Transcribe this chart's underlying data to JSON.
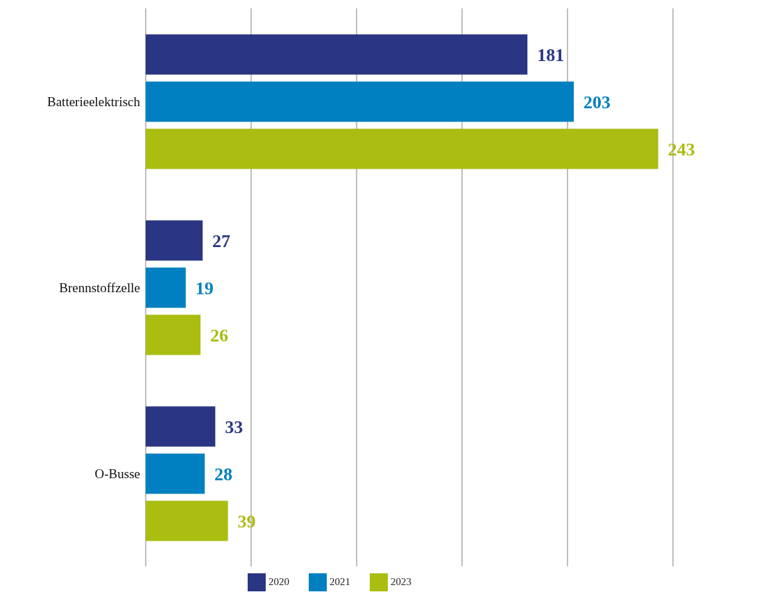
{
  "chart_data": {
    "type": "bar",
    "orientation": "horizontal",
    "categories": [
      "Batterieelektrisch",
      "Brennstoffzelle",
      "O-Busse"
    ],
    "series": [
      {
        "name": "2020",
        "color": "#2a3583",
        "values": [
          181,
          27,
          33
        ]
      },
      {
        "name": "2021",
        "color": "#0080c0",
        "values": [
          203,
          19,
          28
        ]
      },
      {
        "name": "2023",
        "color": "#aabd10",
        "values": [
          243,
          26,
          39
        ]
      }
    ],
    "xlim": [
      0,
      250
    ],
    "xticks": [
      {
        "value": 0,
        "label": null
      },
      {
        "value": 50,
        "label": null
      },
      {
        "value": 100,
        "label": null
      },
      {
        "value": 150,
        "label": null
      },
      {
        "value": 200,
        "label": null
      },
      {
        "value": 250,
        "label": null
      }
    ],
    "tick_labels": "y",
    "grid": "x",
    "legend": "bottom",
    "data_labels": true
  }
}
